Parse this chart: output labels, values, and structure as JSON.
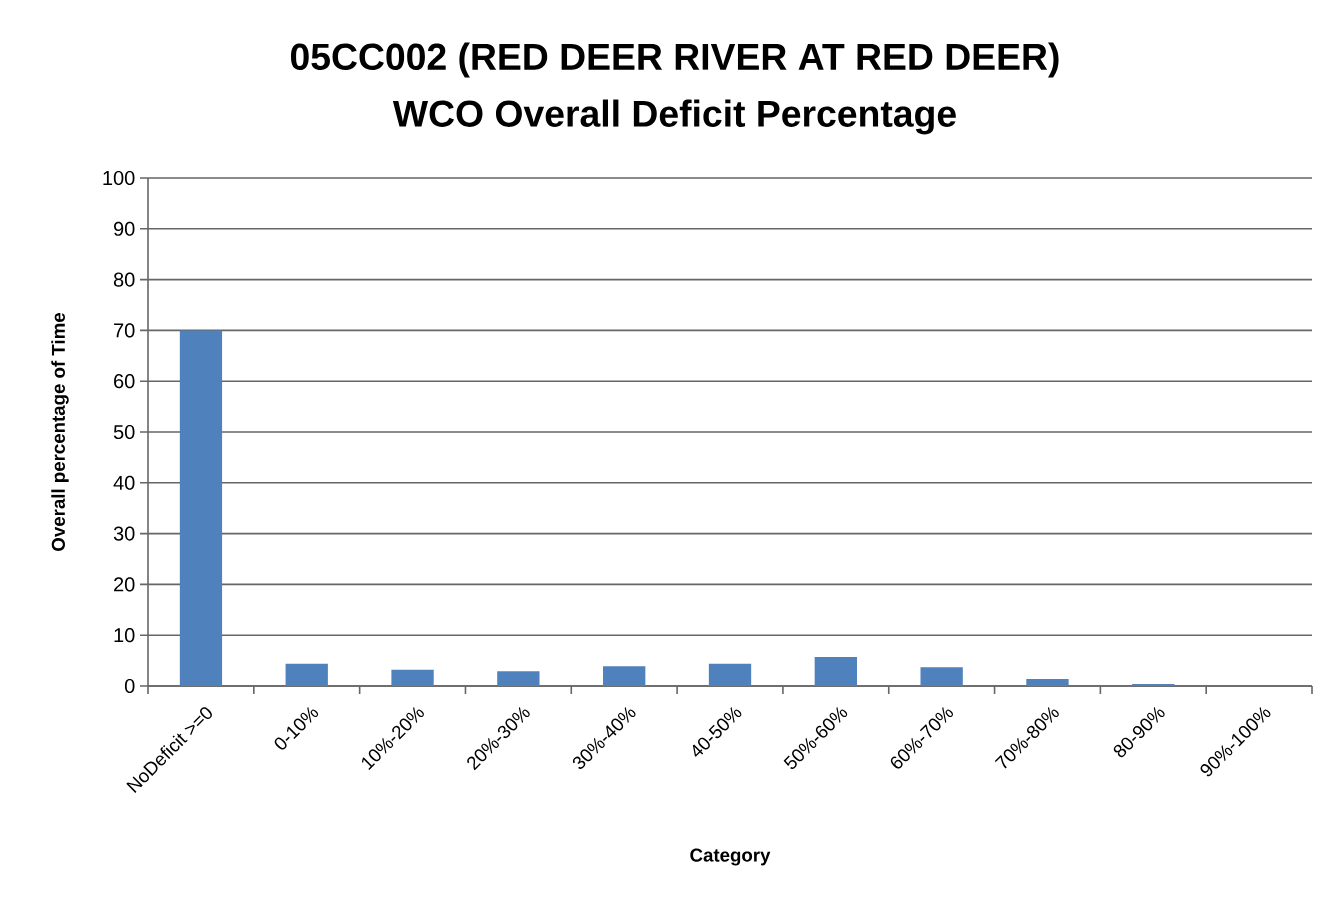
{
  "chart_data": {
    "type": "bar",
    "title": "05CC002 (RED DEER RIVER AT RED DEER)",
    "subtitle": "WCO Overall Deficit Percentage",
    "xlabel": "Category",
    "ylabel": "Overall percentage of Time",
    "categories": [
      "NoDeficit >=0",
      "0-10%",
      "10%-20%",
      "20%-30%",
      "30%-40%",
      "40-50%",
      "50%-60%",
      "60%-70%",
      "70%-80%",
      "80-90%",
      "90%-100%"
    ],
    "values": [
      70,
      4.4,
      3.2,
      2.9,
      3.9,
      4.4,
      5.7,
      3.7,
      1.4,
      0.4,
      0
    ],
    "color": "#4f81bd",
    "ylim": [
      0,
      100
    ],
    "yticks": [
      0,
      10,
      20,
      30,
      40,
      50,
      60,
      70,
      80,
      90,
      100
    ],
    "grid": "y"
  }
}
